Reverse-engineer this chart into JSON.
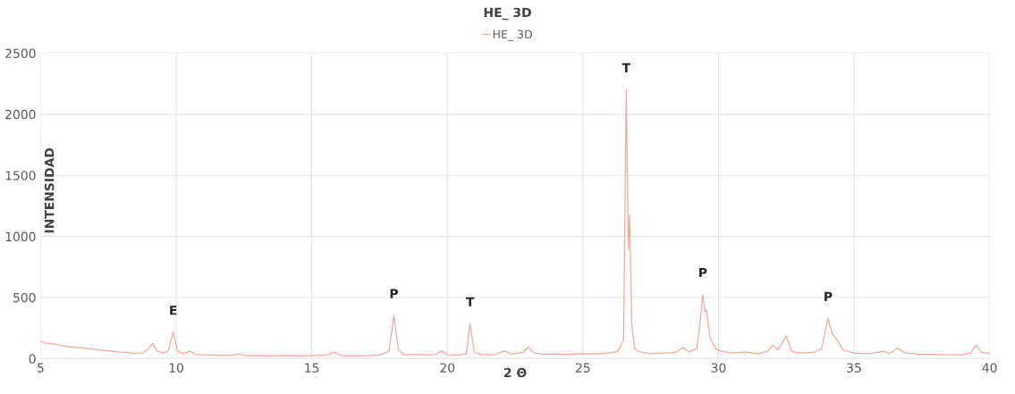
{
  "chart_data": {
    "type": "line",
    "title": "HE_ 3D",
    "xlabel": "2 Θ",
    "ylabel": "INTENSIDAD",
    "xlim": [
      5,
      40
    ],
    "xticks": [
      5,
      10,
      15,
      20,
      25,
      30,
      35,
      40
    ],
    "ylim": [
      0,
      2500
    ],
    "yticks": [
      0,
      500,
      1000,
      1500,
      2000,
      2500
    ],
    "grid": true,
    "legend": "top",
    "marker": "none",
    "line_style": "solid",
    "series": [
      {
        "name": "HE_ 3D",
        "color": "#f6a99b",
        "x": [
          5.0,
          5.2,
          5.5,
          5.8,
          6.1,
          6.5,
          6.9,
          7.3,
          7.7,
          8.1,
          8.5,
          8.8,
          9.0,
          9.13,
          9.3,
          9.5,
          9.7,
          9.89,
          10.05,
          10.3,
          10.5,
          10.7,
          11.0,
          11.5,
          12.0,
          12.3,
          12.6,
          13.0,
          13.5,
          14.0,
          14.5,
          15.0,
          15.5,
          15.85,
          16.1,
          16.5,
          17.0,
          17.5,
          17.85,
          18.03,
          18.2,
          18.4,
          18.9,
          19.3,
          19.6,
          19.8,
          20.0,
          20.4,
          20.7,
          20.84,
          21.0,
          21.3,
          21.8,
          22.1,
          22.4,
          22.8,
          23.0,
          23.2,
          23.6,
          24.0,
          24.5,
          25.0,
          25.5,
          26.0,
          26.3,
          26.5,
          26.6,
          26.68,
          26.72,
          26.8,
          26.9,
          27.1,
          27.5,
          28.0,
          28.4,
          28.7,
          28.9,
          29.2,
          29.3,
          29.42,
          29.5,
          29.55,
          29.7,
          29.9,
          30.1,
          30.5,
          31.0,
          31.5,
          31.8,
          32.0,
          32.2,
          32.5,
          32.7,
          33.0,
          33.5,
          33.8,
          34.04,
          34.2,
          34.35,
          34.6,
          35.0,
          35.5,
          36.1,
          36.3,
          36.6,
          36.9,
          37.5,
          38.0,
          38.5,
          39.0,
          39.3,
          39.5,
          39.7,
          40.0
        ],
        "values": [
          140,
          125,
          118,
          105,
          95,
          88,
          78,
          68,
          58,
          50,
          42,
          48,
          85,
          125,
          60,
          45,
          60,
          215,
          60,
          40,
          62,
          35,
          30,
          28,
          25,
          38,
          24,
          25,
          22,
          25,
          22,
          25,
          25,
          52,
          25,
          22,
          24,
          28,
          60,
          352,
          70,
          30,
          35,
          30,
          35,
          65,
          30,
          28,
          40,
          285,
          50,
          30,
          35,
          62,
          35,
          55,
          93,
          45,
          35,
          38,
          35,
          40,
          38,
          45,
          60,
          150,
          2200,
          900,
          1180,
          300,
          80,
          55,
          40,
          45,
          48,
          90,
          55,
          80,
          250,
          524,
          380,
          400,
          160,
          80,
          60,
          45,
          55,
          40,
          60,
          110,
          70,
          185,
          60,
          45,
          50,
          80,
          328,
          200,
          160,
          70,
          45,
          40,
          60,
          40,
          85,
          45,
          35,
          35,
          30,
          30,
          45,
          110,
          50,
          40
        ]
      }
    ],
    "annotations": [
      {
        "text": "E",
        "x": 9.89,
        "y": 215
      },
      {
        "text": "P",
        "x": 18.03,
        "y": 352
      },
      {
        "text": "T",
        "x": 20.84,
        "y": 285
      },
      {
        "text": "T",
        "x": 26.6,
        "y": 2200
      },
      {
        "text": "P",
        "x": 29.42,
        "y": 524
      },
      {
        "text": "P",
        "x": 34.04,
        "y": 328
      }
    ]
  }
}
